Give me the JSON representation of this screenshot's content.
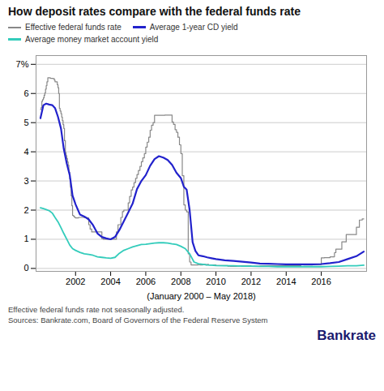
{
  "chart_data": {
    "type": "line",
    "title": "How deposit rates compare with the federal funds rate",
    "x_label": "(January 2000 – May 2018)",
    "footnotes": [
      "Effective federal funds rate not seasonally adjusted.",
      "Sources: Bankrate.com, Board of Governors of the Federal Reserve System"
    ],
    "brand": "Bankrate",
    "xlim": [
      1999.75,
      2018.58
    ],
    "xticks": [
      2002,
      2004,
      2006,
      2008,
      2010,
      2012,
      2014,
      2016
    ],
    "ylim": [
      -0.1,
      7.3
    ],
    "yticks": [
      0,
      1,
      2,
      3,
      4,
      5,
      6,
      {
        "value": 7,
        "label": "7%"
      }
    ],
    "grid": true,
    "series": [
      {
        "name": "Effective federal funds rate",
        "color": "#888888",
        "type": "step",
        "x": [
          2000.0,
          2000.04,
          2000.08,
          2000.12,
          2000.17,
          2000.21,
          2000.25,
          2000.29,
          2000.33,
          2000.37,
          2000.42,
          2000.46,
          2000.5,
          2000.54,
          2000.58,
          2000.62,
          2000.67,
          2000.71,
          2000.75,
          2000.79,
          2000.83,
          2000.87,
          2000.92,
          2000.96,
          2001.0,
          2001.04,
          2001.08,
          2001.12,
          2001.17,
          2001.21,
          2001.25,
          2001.29,
          2001.33,
          2001.37,
          2001.42,
          2001.46,
          2001.5,
          2001.54,
          2001.58,
          2001.62,
          2001.67,
          2001.71,
          2001.75,
          2001.79,
          2001.83,
          2001.87,
          2001.92,
          2001.96,
          2002.0,
          2002.08,
          2002.17,
          2002.25,
          2002.33,
          2002.42,
          2002.5,
          2002.58,
          2002.67,
          2002.75,
          2002.83,
          2002.92,
          2003.0,
          2003.08,
          2003.17,
          2003.25,
          2003.33,
          2003.42,
          2003.5,
          2003.58,
          2003.67,
          2003.75,
          2003.83,
          2003.92,
          2004.0,
          2004.08,
          2004.17,
          2004.25,
          2004.33,
          2004.42,
          2004.5,
          2004.58,
          2004.67,
          2004.75,
          2004.83,
          2004.92,
          2005.0,
          2005.08,
          2005.17,
          2005.25,
          2005.33,
          2005.42,
          2005.5,
          2005.58,
          2005.67,
          2005.75,
          2005.83,
          2005.92,
          2006.0,
          2006.08,
          2006.17,
          2006.25,
          2006.33,
          2006.42,
          2006.5,
          2006.58,
          2006.67,
          2006.75,
          2006.83,
          2006.92,
          2007.0,
          2007.08,
          2007.17,
          2007.25,
          2007.33,
          2007.42,
          2007.5,
          2007.58,
          2007.67,
          2007.75,
          2007.83,
          2007.92,
          2008.0,
          2008.08,
          2008.17,
          2008.25,
          2008.33,
          2008.42,
          2008.5,
          2008.58,
          2008.67,
          2008.75,
          2008.83,
          2008.92,
          2009.0,
          2009.08,
          2009.17,
          2009.25,
          2009.33,
          2009.42,
          2009.5,
          2009.58,
          2009.67,
          2009.75,
          2009.83,
          2009.92,
          2010.0,
          2010.17,
          2010.33,
          2010.5,
          2010.67,
          2010.83,
          2011.0,
          2011.17,
          2011.33,
          2011.5,
          2011.67,
          2011.83,
          2012.0,
          2012.17,
          2012.33,
          2012.5,
          2012.67,
          2012.83,
          2013.0,
          2013.17,
          2013.33,
          2013.5,
          2013.67,
          2013.83,
          2014.0,
          2014.17,
          2014.33,
          2014.5,
          2014.67,
          2014.83,
          2015.0,
          2015.17,
          2015.33,
          2015.5,
          2015.67,
          2015.83,
          2016.0,
          2016.08,
          2016.17,
          2016.25,
          2016.33,
          2016.42,
          2016.5,
          2016.58,
          2016.67,
          2016.75,
          2016.83,
          2016.92,
          2017.0,
          2017.08,
          2017.17,
          2017.25,
          2017.33,
          2017.42,
          2017.5,
          2017.58,
          2017.67,
          2017.75,
          2017.83,
          2017.92,
          2018.0,
          2018.08,
          2018.17,
          2018.25,
          2018.33,
          2018.42
        ],
        "values": [
          5.45,
          5.52,
          5.73,
          5.79,
          5.85,
          5.94,
          6.02,
          6.15,
          6.27,
          6.4,
          6.54,
          6.54,
          6.54,
          6.53,
          6.52,
          6.52,
          6.52,
          6.51,
          6.51,
          6.46,
          6.4,
          6.4,
          6.4,
          6.3,
          6.2,
          6.0,
          5.49,
          5.4,
          5.31,
          5.19,
          5.07,
          4.93,
          4.8,
          4.38,
          3.97,
          3.87,
          3.77,
          3.65,
          3.54,
          3.3,
          3.07,
          2.78,
          2.49,
          2.15,
          1.82,
          1.8,
          1.77,
          1.75,
          1.73,
          1.73,
          1.75,
          1.75,
          1.75,
          1.75,
          1.74,
          1.74,
          1.73,
          1.5,
          1.35,
          1.25,
          1.25,
          1.25,
          1.25,
          1.25,
          1.25,
          1.25,
          1.02,
          1.0,
          1.0,
          1.0,
          1.0,
          1.0,
          1.0,
          1.0,
          1.0,
          1.0,
          1.25,
          1.5,
          1.5,
          1.75,
          1.95,
          2.0,
          2.0,
          2.0,
          2.25,
          2.47,
          2.69,
          2.79,
          2.94,
          3.09,
          3.22,
          3.36,
          3.5,
          3.66,
          3.79,
          3.94,
          4.16,
          4.33,
          4.5,
          4.74,
          4.91,
          5.0,
          5.25,
          5.25,
          5.25,
          5.25,
          5.25,
          5.25,
          5.25,
          5.26,
          5.26,
          5.26,
          5.26,
          5.26,
          5.02,
          4.94,
          4.76,
          4.67,
          4.5,
          4.24,
          3.94,
          3.18,
          2.18,
          2.0,
          1.94,
          0.5,
          0.22,
          0.12,
          0.12,
          0.12,
          0.12,
          0.12,
          0.13,
          0.12,
          0.12,
          0.14,
          0.14,
          0.12,
          0.14,
          0.12,
          0.12,
          0.12,
          0.12,
          0.12,
          0.1,
          0.1,
          0.1,
          0.1,
          0.08,
          0.07,
          0.07,
          0.08,
          0.09,
          0.09,
          0.09,
          0.09,
          0.07,
          0.08,
          0.08,
          0.09,
          0.09,
          0.09,
          0.09,
          0.09,
          0.09,
          0.09,
          0.09,
          0.09,
          0.09,
          0.09,
          0.09,
          0.09,
          0.09,
          0.13,
          0.12,
          0.12,
          0.12,
          0.13,
          0.13,
          0.13,
          0.36,
          0.36,
          0.37,
          0.37,
          0.37,
          0.37,
          0.4,
          0.4,
          0.4,
          0.54,
          0.66,
          0.66,
          0.66,
          0.66,
          0.91,
          0.91,
          0.91,
          1.16,
          1.16,
          1.16,
          1.16,
          1.16,
          1.16,
          1.16,
          1.41,
          1.41,
          1.66,
          1.66,
          1.7,
          1.7
        ]
      },
      {
        "name": "Average 1-year CD yield",
        "color": "#2222cc",
        "type": "line",
        "x": [
          2000.0,
          2000.17,
          2000.33,
          2000.5,
          2000.67,
          2000.83,
          2001.0,
          2001.17,
          2001.33,
          2001.5,
          2001.67,
          2001.83,
          2002.0,
          2002.25,
          2002.5,
          2002.75,
          2003.0,
          2003.25,
          2003.5,
          2003.75,
          2004.0,
          2004.25,
          2004.5,
          2004.75,
          2005.0,
          2005.25,
          2005.5,
          2005.75,
          2006.0,
          2006.25,
          2006.5,
          2006.75,
          2007.0,
          2007.25,
          2007.5,
          2007.75,
          2008.0,
          2008.17,
          2008.33,
          2008.5,
          2008.67,
          2008.83,
          2009.0,
          2009.25,
          2009.5,
          2009.75,
          2010.0,
          2010.5,
          2011.0,
          2011.5,
          2012.0,
          2012.5,
          2013.0,
          2013.5,
          2014.0,
          2014.5,
          2015.0,
          2015.5,
          2016.0,
          2016.5,
          2017.0,
          2017.5,
          2018.0,
          2018.42
        ],
        "values": [
          5.15,
          5.6,
          5.65,
          5.62,
          5.6,
          5.5,
          5.2,
          4.8,
          4.1,
          3.6,
          3.2,
          2.5,
          2.2,
          1.85,
          1.78,
          1.68,
          1.48,
          1.2,
          1.08,
          1.03,
          1.0,
          1.08,
          1.32,
          1.62,
          1.92,
          2.22,
          2.72,
          3.0,
          3.2,
          3.52,
          3.75,
          3.85,
          3.8,
          3.72,
          3.55,
          3.28,
          3.1,
          2.8,
          2.7,
          2.0,
          0.9,
          0.6,
          0.45,
          0.42,
          0.38,
          0.35,
          0.32,
          0.28,
          0.26,
          0.23,
          0.2,
          0.17,
          0.16,
          0.15,
          0.14,
          0.14,
          0.14,
          0.14,
          0.15,
          0.18,
          0.22,
          0.32,
          0.42,
          0.58
        ]
      },
      {
        "name": "Average money market account yield",
        "color": "#33ccbb",
        "type": "line",
        "x": [
          2000.0,
          2000.17,
          2000.33,
          2000.5,
          2000.67,
          2000.83,
          2001.0,
          2001.17,
          2001.33,
          2001.5,
          2001.67,
          2001.83,
          2002.0,
          2002.25,
          2002.5,
          2002.75,
          2003.0,
          2003.25,
          2003.5,
          2003.75,
          2004.0,
          2004.25,
          2004.5,
          2004.75,
          2005.0,
          2005.25,
          2005.5,
          2005.75,
          2006.0,
          2006.25,
          2006.5,
          2006.75,
          2007.0,
          2007.25,
          2007.5,
          2007.75,
          2008.0,
          2008.25,
          2008.5,
          2008.75,
          2009.0,
          2009.25,
          2009.5,
          2009.75,
          2010.0,
          2010.5,
          2011.0,
          2011.5,
          2012.0,
          2012.5,
          2013.0,
          2013.5,
          2014.0,
          2014.5,
          2015.0,
          2015.5,
          2016.0,
          2016.5,
          2017.0,
          2017.5,
          2018.0,
          2018.42
        ],
        "values": [
          2.08,
          2.05,
          2.02,
          1.98,
          1.9,
          1.75,
          1.6,
          1.4,
          1.2,
          1.0,
          0.8,
          0.68,
          0.62,
          0.55,
          0.5,
          0.48,
          0.45,
          0.4,
          0.38,
          0.36,
          0.35,
          0.38,
          0.52,
          0.62,
          0.68,
          0.74,
          0.78,
          0.82,
          0.83,
          0.85,
          0.87,
          0.88,
          0.88,
          0.87,
          0.84,
          0.82,
          0.76,
          0.68,
          0.5,
          0.22,
          0.16,
          0.14,
          0.12,
          0.11,
          0.1,
          0.09,
          0.09,
          0.08,
          0.08,
          0.07,
          0.07,
          0.06,
          0.06,
          0.06,
          0.06,
          0.06,
          0.06,
          0.07,
          0.08,
          0.09,
          0.09,
          0.11
        ]
      }
    ]
  }
}
